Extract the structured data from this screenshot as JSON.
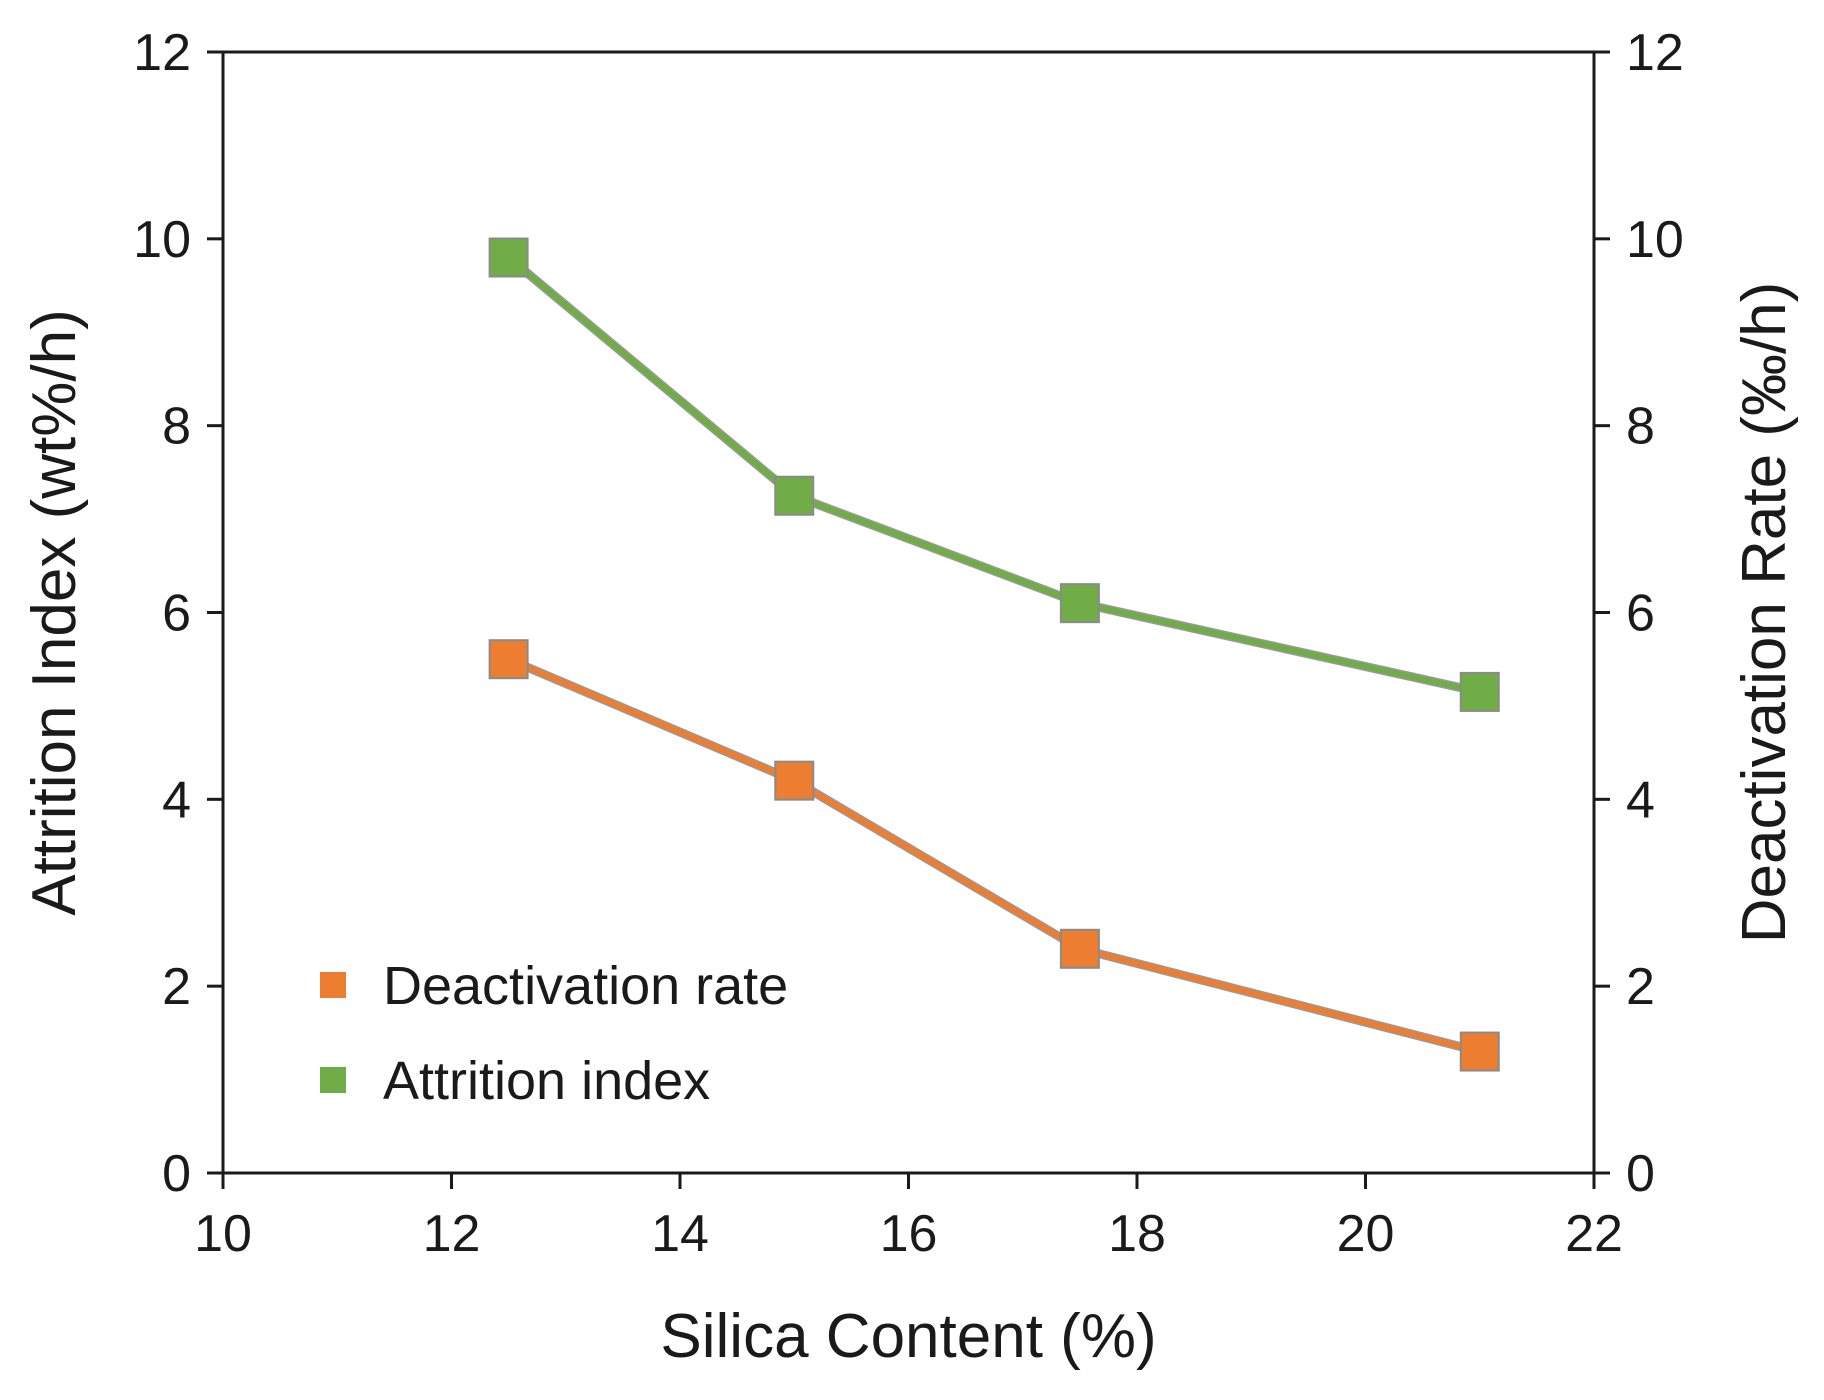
{
  "chart_data": {
    "type": "line",
    "title": "",
    "xlabel": "Silica Content (%)",
    "ylabel": "Attrition Index (wt%/h)",
    "y2label": "Deactivation Rate (‰/h)",
    "xlim": [
      10,
      22
    ],
    "ylim": [
      0,
      12
    ],
    "y2lim": [
      0,
      12
    ],
    "x_ticks": [
      10,
      12,
      14,
      16,
      18,
      20,
      22
    ],
    "y_ticks": [
      0,
      2,
      4,
      6,
      8,
      10,
      12
    ],
    "y2_ticks": [
      0,
      2,
      4,
      6,
      8,
      10,
      12
    ],
    "grid": false,
    "legend_position": "bottom-left",
    "series": [
      {
        "name": "Deactivation rate",
        "axis": "right",
        "color": "#ed7d31",
        "marker": "square",
        "x": [
          12.5,
          15,
          17.5,
          21
        ],
        "values": [
          5.5,
          4.2,
          2.4,
          1.3
        ]
      },
      {
        "name": "Attrition index",
        "axis": "left",
        "color": "#70ad47",
        "marker": "square",
        "x": [
          12.5,
          15,
          17.5,
          21
        ],
        "values": [
          9.8,
          7.25,
          6.1,
          5.15
        ]
      }
    ]
  }
}
